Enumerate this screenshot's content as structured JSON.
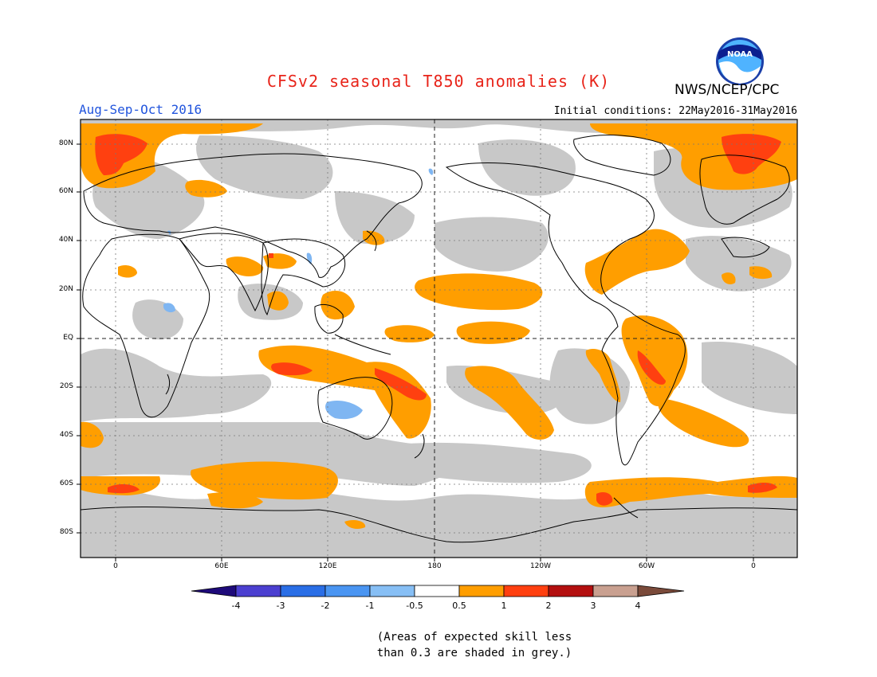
{
  "title": "CFSv2 seasonal T850 anomalies (K)",
  "agency": "NWS/NCEP/CPC",
  "logo_text": "NOAA",
  "season": "Aug-Sep-Oct 2016",
  "initial_conditions": "Initial conditions: 22May2016-31May2016",
  "lat_labels": [
    "80N",
    "60N",
    "40N",
    "20N",
    "EQ",
    "20S",
    "40S",
    "60S",
    "80S"
  ],
  "lon_labels": [
    "0",
    "60E",
    "120E",
    "180",
    "120W",
    "60W",
    "0"
  ],
  "colorbar": {
    "labels": [
      "-4",
      "-3",
      "-2",
      "-1",
      "-0.5",
      "0.5",
      "1",
      "2",
      "3",
      "4"
    ],
    "colors": [
      "#1e0a7a",
      "#4b3fd0",
      "#2a6ee6",
      "#4a95f2",
      "#87bff5",
      "#ffffff",
      "#ff9e00",
      "#ff4010",
      "#b30f0f",
      "#c9a090",
      "#7a4a3a"
    ]
  },
  "note_lines": [
    "(Areas of expected skill less",
    "than 0.3 are shaded in grey.)"
  ],
  "colors": {
    "grey_skill": "#c8c8c8",
    "anom_0_5_1": "#ff9e00",
    "anom_1_2": "#ff4010",
    "anom_neg_0_5_1": "#7fb6f2",
    "coast": "#000000"
  }
}
